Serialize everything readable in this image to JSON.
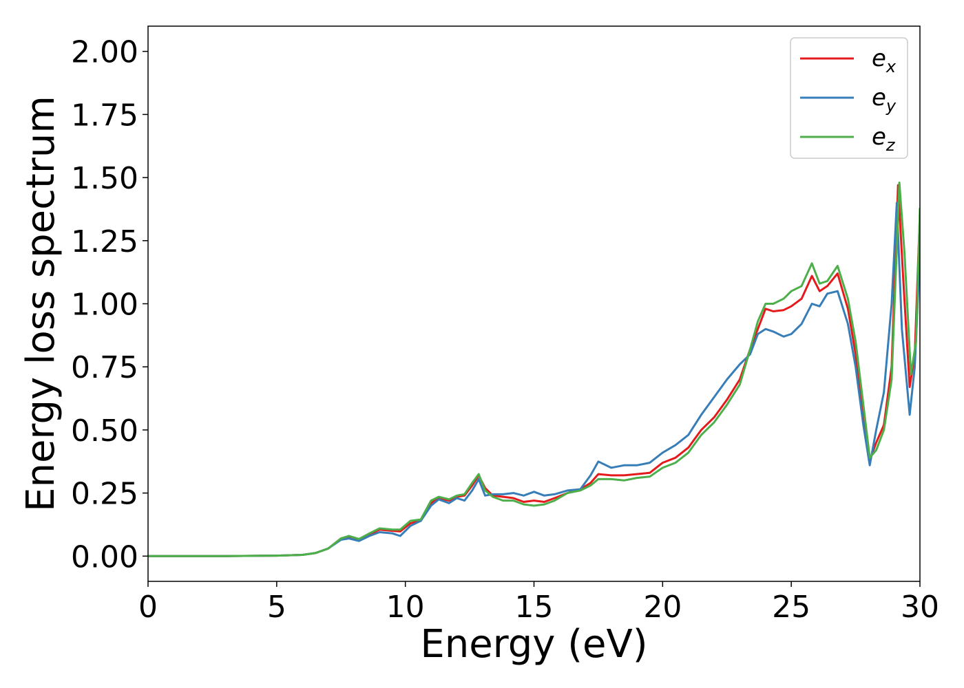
{
  "chart_data": {
    "type": "line",
    "title": "",
    "xlabel": "Energy (eV)",
    "ylabel": "Energy loss spectrum",
    "xlim": [
      0,
      30
    ],
    "ylim": [
      -0.1,
      2.1
    ],
    "xticks": [
      0,
      5,
      10,
      15,
      20,
      25,
      30
    ],
    "xtick_labels": [
      "0",
      "5",
      "10",
      "15",
      "20",
      "25",
      "30"
    ],
    "yticks": [
      0.0,
      0.25,
      0.5,
      0.75,
      1.0,
      1.25,
      1.5,
      1.75,
      2.0
    ],
    "ytick_labels": [
      "0.00",
      "0.25",
      "0.50",
      "0.75",
      "1.00",
      "1.25",
      "1.50",
      "1.75",
      "2.00"
    ],
    "grid": false,
    "legend_position": "top-right",
    "series": [
      {
        "name": "e",
        "subscript": "x",
        "color": "#e41a1c",
        "points": [
          [
            0,
            0
          ],
          [
            3,
            0
          ],
          [
            5,
            0.002
          ],
          [
            6,
            0.005
          ],
          [
            6.5,
            0.012
          ],
          [
            7,
            0.03
          ],
          [
            7.5,
            0.07
          ],
          [
            7.8,
            0.078
          ],
          [
            8.2,
            0.065
          ],
          [
            8.6,
            0.085
          ],
          [
            9,
            0.105
          ],
          [
            9.5,
            0.1
          ],
          [
            9.8,
            0.098
          ],
          [
            10.2,
            0.13
          ],
          [
            10.6,
            0.14
          ],
          [
            11,
            0.21
          ],
          [
            11.3,
            0.23
          ],
          [
            11.7,
            0.22
          ],
          [
            12,
            0.235
          ],
          [
            12.3,
            0.24
          ],
          [
            12.6,
            0.28
          ],
          [
            12.85,
            0.32
          ],
          [
            13.1,
            0.27
          ],
          [
            13.4,
            0.24
          ],
          [
            13.8,
            0.235
          ],
          [
            14.2,
            0.23
          ],
          [
            14.6,
            0.215
          ],
          [
            15,
            0.22
          ],
          [
            15.4,
            0.215
          ],
          [
            15.8,
            0.23
          ],
          [
            16.3,
            0.25
          ],
          [
            16.8,
            0.265
          ],
          [
            17.2,
            0.29
          ],
          [
            17.5,
            0.325
          ],
          [
            18,
            0.32
          ],
          [
            18.5,
            0.32
          ],
          [
            19,
            0.325
          ],
          [
            19.5,
            0.33
          ],
          [
            20,
            0.37
          ],
          [
            20.5,
            0.39
          ],
          [
            21,
            0.43
          ],
          [
            21.5,
            0.5
          ],
          [
            22,
            0.55
          ],
          [
            22.5,
            0.62
          ],
          [
            23,
            0.7
          ],
          [
            23.4,
            0.82
          ],
          [
            23.7,
            0.9
          ],
          [
            24,
            0.98
          ],
          [
            24.3,
            0.97
          ],
          [
            24.7,
            0.975
          ],
          [
            25,
            0.99
          ],
          [
            25.4,
            1.02
          ],
          [
            25.8,
            1.11
          ],
          [
            26.1,
            1.05
          ],
          [
            26.4,
            1.07
          ],
          [
            26.8,
            1.12
          ],
          [
            27.2,
            0.98
          ],
          [
            27.5,
            0.8
          ],
          [
            27.8,
            0.55
          ],
          [
            28.05,
            0.38
          ],
          [
            28.3,
            0.45
          ],
          [
            28.6,
            0.52
          ],
          [
            28.9,
            0.75
          ],
          [
            29.15,
            1.47
          ],
          [
            29.35,
            1.1
          ],
          [
            29.6,
            0.67
          ],
          [
            29.8,
            0.8
          ],
          [
            30,
            1.36
          ]
        ]
      },
      {
        "name": "e",
        "subscript": "y",
        "color": "#377eb8",
        "points": [
          [
            0,
            0
          ],
          [
            3,
            0
          ],
          [
            5,
            0.002
          ],
          [
            6,
            0.005
          ],
          [
            6.5,
            0.012
          ],
          [
            7,
            0.03
          ],
          [
            7.5,
            0.065
          ],
          [
            7.8,
            0.07
          ],
          [
            8.2,
            0.06
          ],
          [
            8.6,
            0.08
          ],
          [
            9,
            0.095
          ],
          [
            9.5,
            0.09
          ],
          [
            9.8,
            0.08
          ],
          [
            10.2,
            0.12
          ],
          [
            10.6,
            0.14
          ],
          [
            11,
            0.2
          ],
          [
            11.3,
            0.225
          ],
          [
            11.7,
            0.21
          ],
          [
            12,
            0.23
          ],
          [
            12.3,
            0.22
          ],
          [
            12.6,
            0.26
          ],
          [
            12.85,
            0.305
          ],
          [
            13.1,
            0.24
          ],
          [
            13.4,
            0.245
          ],
          [
            13.8,
            0.245
          ],
          [
            14.2,
            0.25
          ],
          [
            14.6,
            0.24
          ],
          [
            15,
            0.255
          ],
          [
            15.4,
            0.24
          ],
          [
            15.8,
            0.245
          ],
          [
            16.3,
            0.26
          ],
          [
            16.8,
            0.265
          ],
          [
            17.2,
            0.32
          ],
          [
            17.5,
            0.375
          ],
          [
            18,
            0.35
          ],
          [
            18.5,
            0.36
          ],
          [
            19,
            0.36
          ],
          [
            19.5,
            0.37
          ],
          [
            20,
            0.41
          ],
          [
            20.5,
            0.44
          ],
          [
            21,
            0.48
          ],
          [
            21.5,
            0.56
          ],
          [
            22,
            0.63
          ],
          [
            22.5,
            0.7
          ],
          [
            23,
            0.76
          ],
          [
            23.4,
            0.8
          ],
          [
            23.7,
            0.88
          ],
          [
            24,
            0.9
          ],
          [
            24.3,
            0.89
          ],
          [
            24.7,
            0.87
          ],
          [
            25,
            0.88
          ],
          [
            25.4,
            0.92
          ],
          [
            25.8,
            1.0
          ],
          [
            26.1,
            0.99
          ],
          [
            26.4,
            1.04
          ],
          [
            26.8,
            1.05
          ],
          [
            27.2,
            0.92
          ],
          [
            27.5,
            0.75
          ],
          [
            27.8,
            0.52
          ],
          [
            28.05,
            0.36
          ],
          [
            28.3,
            0.5
          ],
          [
            28.6,
            0.65
          ],
          [
            28.9,
            1.0
          ],
          [
            29.1,
            1.4
          ],
          [
            29.3,
            0.9
          ],
          [
            29.6,
            0.56
          ],
          [
            29.8,
            0.75
          ],
          [
            30,
            1.2
          ]
        ]
      },
      {
        "name": "e",
        "subscript": "z",
        "color": "#4daf4a",
        "points": [
          [
            0,
            0
          ],
          [
            3,
            0
          ],
          [
            5,
            0.002
          ],
          [
            6,
            0.005
          ],
          [
            6.5,
            0.012
          ],
          [
            7,
            0.03
          ],
          [
            7.5,
            0.07
          ],
          [
            7.8,
            0.08
          ],
          [
            8.2,
            0.068
          ],
          [
            8.6,
            0.09
          ],
          [
            9,
            0.11
          ],
          [
            9.5,
            0.105
          ],
          [
            9.8,
            0.105
          ],
          [
            10.2,
            0.14
          ],
          [
            10.6,
            0.145
          ],
          [
            11,
            0.22
          ],
          [
            11.3,
            0.235
          ],
          [
            11.7,
            0.225
          ],
          [
            12,
            0.24
          ],
          [
            12.3,
            0.245
          ],
          [
            12.6,
            0.29
          ],
          [
            12.85,
            0.325
          ],
          [
            13.1,
            0.26
          ],
          [
            13.4,
            0.235
          ],
          [
            13.8,
            0.22
          ],
          [
            14.2,
            0.22
          ],
          [
            14.6,
            0.205
          ],
          [
            15,
            0.2
          ],
          [
            15.4,
            0.205
          ],
          [
            15.8,
            0.22
          ],
          [
            16.3,
            0.25
          ],
          [
            16.8,
            0.26
          ],
          [
            17.2,
            0.28
          ],
          [
            17.5,
            0.305
          ],
          [
            18,
            0.305
          ],
          [
            18.5,
            0.3
          ],
          [
            19,
            0.31
          ],
          [
            19.5,
            0.315
          ],
          [
            20,
            0.35
          ],
          [
            20.5,
            0.37
          ],
          [
            21,
            0.41
          ],
          [
            21.5,
            0.48
          ],
          [
            22,
            0.53
          ],
          [
            22.5,
            0.6
          ],
          [
            23,
            0.68
          ],
          [
            23.4,
            0.82
          ],
          [
            23.7,
            0.93
          ],
          [
            24,
            1.0
          ],
          [
            24.3,
            1.0
          ],
          [
            24.7,
            1.02
          ],
          [
            25,
            1.05
          ],
          [
            25.4,
            1.07
          ],
          [
            25.8,
            1.16
          ],
          [
            26.1,
            1.08
          ],
          [
            26.4,
            1.09
          ],
          [
            26.8,
            1.15
          ],
          [
            27.2,
            1.02
          ],
          [
            27.5,
            0.85
          ],
          [
            27.8,
            0.6
          ],
          [
            28.05,
            0.39
          ],
          [
            28.3,
            0.42
          ],
          [
            28.6,
            0.5
          ],
          [
            28.9,
            0.7
          ],
          [
            29.2,
            1.48
          ],
          [
            29.4,
            1.2
          ],
          [
            29.65,
            0.72
          ],
          [
            29.85,
            0.85
          ],
          [
            30,
            1.38
          ]
        ]
      }
    ]
  }
}
